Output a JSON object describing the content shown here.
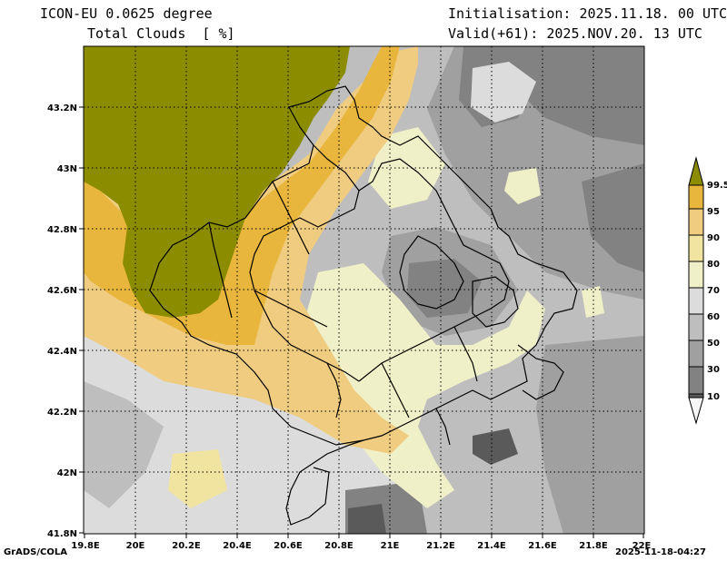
{
  "header": {
    "model": "ICON-EU 0.0625 degree",
    "variable": "Total Clouds  [ %]",
    "init": "Initialisation: 2025.11.18. 00 UTC",
    "valid": "Valid(+61): 2025.NOV.20. 13 UTC"
  },
  "footer": {
    "software": "GrADS/COLA",
    "timestamp": "2025-11-18-04:27"
  },
  "axes": {
    "lat_labels": [
      "43.2N",
      "43N",
      "42.8N",
      "42.6N",
      "42.4N",
      "42.2N",
      "42N",
      "41.8N"
    ],
    "lon_labels": [
      "19.8E",
      "20E",
      "20.2E",
      "20.4E",
      "20.6E",
      "20.8E",
      "21E",
      "21.2E",
      "21.4E",
      "21.6E",
      "21.8E",
      "22E"
    ]
  },
  "legend": {
    "levels": [
      "99.5",
      "95",
      "90",
      "80",
      "70",
      "60",
      "50",
      "30",
      "10"
    ],
    "colors": [
      "#8c8c00",
      "#e8b63c",
      "#f0cc80",
      "#f0e4a0",
      "#f0f0c8",
      "#dcdcdc",
      "#bebebe",
      "#a0a0a0",
      "#828282",
      "#5a5a5a",
      "#f6f6f6"
    ]
  },
  "chart_data": {
    "type": "heatmap",
    "title": "Total Clouds [ %]",
    "x_range": [
      19.8,
      22.0
    ],
    "y_range": [
      41.8,
      43.4
    ],
    "units": "%"
  }
}
